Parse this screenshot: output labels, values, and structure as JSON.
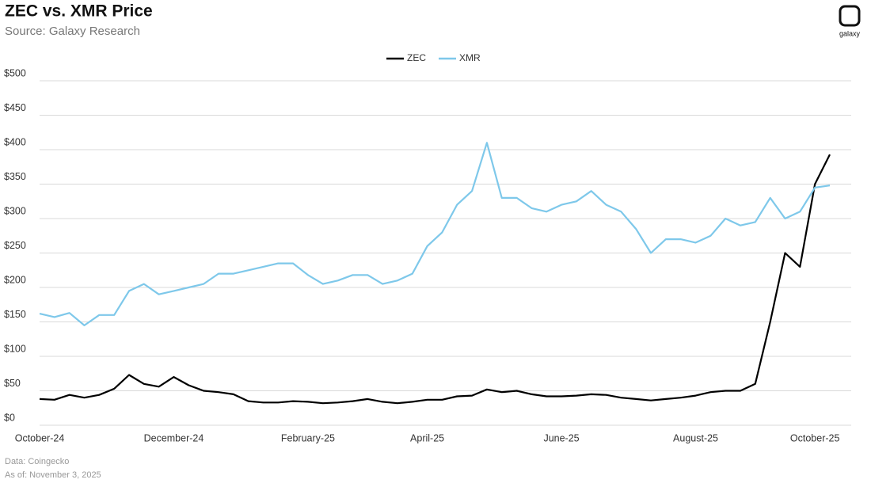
{
  "chart_data": {
    "type": "line",
    "title": "ZEC vs. XMR Price",
    "subtitle": "Source: Galaxy Research",
    "logo": "galaxy",
    "notes": [
      "Data: Coingecko",
      "As of: November 3, 2025"
    ],
    "categories": [
      "October-24",
      null,
      null,
      null,
      null,
      null,
      null,
      null,
      null,
      "December-24",
      null,
      null,
      null,
      null,
      null,
      null,
      null,
      null,
      "February-25",
      null,
      null,
      null,
      null,
      null,
      null,
      null,
      "April-25",
      null,
      null,
      null,
      null,
      null,
      null,
      null,
      null,
      "June-25",
      null,
      null,
      null,
      null,
      null,
      null,
      null,
      null,
      "August-25",
      null,
      null,
      null,
      null,
      null,
      null,
      null,
      "October-25",
      null
    ],
    "series": [
      {
        "name": "ZEC",
        "color": "#000000",
        "values": [
          38,
          37,
          44,
          40,
          44,
          53,
          73,
          60,
          56,
          70,
          58,
          50,
          48,
          45,
          35,
          33,
          33,
          35,
          34,
          32,
          33,
          35,
          38,
          34,
          32,
          34,
          37,
          37,
          42,
          43,
          52,
          48,
          50,
          45,
          42,
          42,
          43,
          45,
          44,
          40,
          38,
          36,
          38,
          40,
          43,
          48,
          50,
          50,
          60,
          150,
          250,
          230,
          350,
          393
        ]
      },
      {
        "name": "XMR",
        "color": "#7ec8ea",
        "values": [
          162,
          157,
          163,
          145,
          160,
          160,
          195,
          205,
          190,
          195,
          200,
          205,
          220,
          220,
          225,
          230,
          235,
          235,
          218,
          205,
          210,
          218,
          218,
          205,
          210,
          220,
          260,
          280,
          320,
          340,
          410,
          330,
          330,
          315,
          310,
          320,
          325,
          340,
          320,
          310,
          285,
          250,
          270,
          270,
          265,
          275,
          300,
          290,
          295,
          330,
          300,
          310,
          345,
          348
        ]
      }
    ],
    "ylim": [
      0,
      500
    ],
    "yticks": [
      {
        "value": 0,
        "label": "$0"
      },
      {
        "value": 50,
        "label": "$50"
      },
      {
        "value": 100,
        "label": "$100"
      },
      {
        "value": 150,
        "label": "$150"
      },
      {
        "value": 200,
        "label": "$200"
      },
      {
        "value": 250,
        "label": "$250"
      },
      {
        "value": 300,
        "label": "$300"
      },
      {
        "value": 350,
        "label": "$350"
      },
      {
        "value": 400,
        "label": "$400"
      },
      {
        "value": 450,
        "label": "$450"
      },
      {
        "value": 500,
        "label": "$500"
      }
    ],
    "grid": true,
    "legend": "top"
  }
}
